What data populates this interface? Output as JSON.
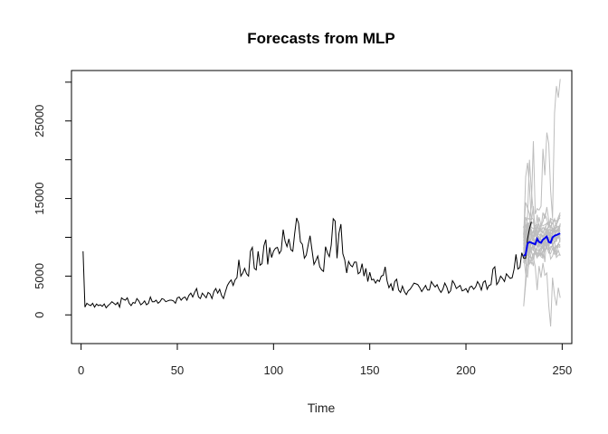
{
  "chart_data": {
    "type": "line",
    "title": "Forecasts from MLP",
    "xlabel": "Time",
    "ylabel": "",
    "xlim": [
      -5,
      255
    ],
    "ylim": [
      -3700,
      31500
    ],
    "xticks": [
      0,
      50,
      100,
      150,
      200,
      250
    ],
    "yticks": [
      0,
      5000,
      15000,
      25000
    ],
    "yticks_minor": [
      10000,
      20000,
      30000
    ],
    "grid": false,
    "legend": "none",
    "colors": {
      "history": "#000000",
      "mean_forecast": "#0000ee",
      "simulated_paths": "#bdbdbd"
    },
    "history": {
      "x_start": 1,
      "values": [
        8200,
        1000,
        1500,
        1300,
        1200,
        1500,
        1000,
        1400,
        1200,
        1300,
        1100,
        1400,
        900,
        1200,
        1400,
        1700,
        1500,
        1300,
        1600,
        1000,
        2200,
        2000,
        1900,
        2200,
        1500,
        1200,
        1600,
        1500,
        2100,
        1800,
        1300,
        1500,
        1800,
        1300,
        1500,
        2300,
        1700,
        1700,
        1900,
        1500,
        1700,
        2100,
        2000,
        1700,
        1800,
        1900,
        1900,
        1800,
        1500,
        2200,
        2300,
        1900,
        2200,
        2300,
        1900,
        2500,
        2800,
        2300,
        2900,
        3400,
        2300,
        2100,
        2800,
        2500,
        2200,
        2900,
        2700,
        2100,
        3000,
        3400,
        2800,
        3300,
        2500,
        2100,
        3000,
        3800,
        4200,
        4500,
        3800,
        4500,
        4800,
        7100,
        5000,
        5400,
        6000,
        5300,
        5000,
        8200,
        8700,
        6000,
        5800,
        8200,
        6400,
        6600,
        8900,
        9700,
        6500,
        8700,
        7400,
        8200,
        8600,
        8700,
        7900,
        8300,
        11000,
        9500,
        8800,
        9800,
        8400,
        8200,
        10500,
        12500,
        11800,
        9400,
        9100,
        7300,
        7700,
        9000,
        10200,
        8300,
        6500,
        7000,
        7600,
        6200,
        5800,
        5600,
        8800,
        8000,
        7500,
        9000,
        12400,
        12100,
        7300,
        10500,
        11700,
        7900,
        7100,
        5400,
        6900,
        6400,
        6200,
        6800,
        6800,
        5300,
        5500,
        6600,
        5000,
        6000,
        4300,
        5500,
        4500,
        4600,
        4100,
        4500,
        4300,
        5000,
        5100,
        6200,
        4400,
        3500,
        4000,
        3100,
        4300,
        4600,
        3200,
        2900,
        3700,
        3000,
        2600,
        3100,
        3300,
        3700,
        4100,
        4000,
        3900,
        3500,
        3000,
        3400,
        3800,
        3200,
        3200,
        4300,
        3900,
        3600,
        3900,
        3300,
        2900,
        3300,
        4100,
        3600,
        2800,
        3100,
        4400,
        4000,
        3400,
        3600,
        3800,
        3100,
        3200,
        3400,
        2900,
        3600,
        3700,
        3300,
        3600,
        4300,
        3900,
        3200,
        4200,
        4400,
        3300,
        3800,
        3900,
        5900,
        6200,
        3900,
        4300,
        5000,
        4700,
        4300,
        5300,
        5000,
        4700,
        4800,
        5900,
        7800,
        5900,
        6100,
        8000,
        7300,
        7300,
        9800,
        11100,
        12000
      ]
    },
    "forecast_mean": {
      "x_start": 230,
      "values": [
        7600,
        7800,
        9200,
        9400,
        9300,
        9200,
        9100,
        9800,
        9400,
        9300,
        9700,
        9900,
        10100,
        9400,
        9300,
        10000,
        10200,
        10300,
        10400,
        10500
      ]
    },
    "simulated_paths": [
      [
        9500,
        12600,
        11800,
        10800,
        11700,
        12000,
        10300,
        10400,
        10800,
        11200,
        10600,
        11300,
        10500,
        11800,
        11400,
        11800,
        12400,
        11200,
        11400,
        11500
      ],
      [
        7500,
        5300,
        4900,
        7600,
        7200,
        7900,
        8100,
        7500,
        7700,
        8000,
        7400,
        8400,
        8800,
        8000,
        7900,
        8600,
        7800,
        8000,
        9000,
        9800
      ],
      [
        9900,
        17800,
        19600,
        16500,
        12100,
        14000,
        10500,
        10900,
        12600,
        11500,
        12000,
        13000,
        12400,
        11200,
        12500,
        10500,
        11400,
        11800,
        12600,
        13200
      ],
      [
        6700,
        10300,
        12800,
        20000,
        16000,
        13200,
        10600,
        12900,
        10600,
        11200,
        13200,
        12400,
        13900,
        12200,
        10800,
        11200,
        10900,
        9400,
        10800,
        11700
      ],
      [
        10500,
        14500,
        13800,
        13000,
        10100,
        10900,
        7800,
        8500,
        10100,
        9200,
        9800,
        9700,
        11100,
        10500,
        9600,
        10800,
        11300,
        9700,
        10000,
        11800
      ],
      [
        8100,
        9900,
        10200,
        11900,
        12600,
        12300,
        10300,
        11200,
        8900,
        10400,
        9900,
        10700,
        10800,
        11000,
        10200,
        9600,
        9800,
        9600,
        10100,
        9400
      ],
      [
        8500,
        6600,
        6300,
        7700,
        10100,
        9800,
        8100,
        7300,
        8500,
        7700,
        8200,
        9100,
        8600,
        10000,
        10000,
        9400,
        8200,
        8700,
        8800,
        8700
      ],
      [
        1100,
        4800,
        10700,
        8500,
        7100,
        6300,
        9300,
        9900,
        9300,
        9500,
        9000,
        6800,
        10400,
        8500,
        10300,
        8900,
        9500,
        7700,
        8300,
        7600
      ],
      [
        7700,
        11100,
        9600,
        8500,
        10200,
        10200,
        11100,
        10500,
        8600,
        9800,
        9200,
        9500,
        10400,
        9300,
        10600,
        10300,
        11300,
        10600,
        11100,
        10700
      ],
      [
        8700,
        6900,
        10300,
        9700,
        8000,
        7700,
        8000,
        7400,
        8000,
        7500,
        7300,
        9100,
        9100,
        8900,
        7200,
        7600,
        8500,
        7400,
        7700,
        7800
      ],
      [
        11300,
        11200,
        12500,
        12300,
        13900,
        22400,
        13000,
        13700,
        13500,
        14000,
        21400,
        18000,
        23500,
        22100,
        16000,
        12500,
        26000,
        29500,
        28000,
        30400
      ],
      [
        9000,
        10400,
        11400,
        10400,
        11000,
        9500,
        10900,
        11400,
        11700,
        10700,
        11300,
        10900,
        11800,
        11500,
        12300,
        12400,
        10600,
        11600,
        12200,
        12900
      ],
      [
        11400,
        10200,
        11900,
        9800,
        8500,
        9100,
        9600,
        8700,
        9000,
        9400,
        9300,
        9800,
        9000,
        10000,
        9700,
        10400,
        10400,
        9800,
        10500,
        10400
      ],
      [
        9200,
        8700,
        8800,
        7100,
        6600,
        7500,
        7900,
        8000,
        7600,
        8400,
        9100,
        9000,
        9800,
        10000,
        10000,
        9700,
        9500,
        9600,
        10400,
        9800
      ],
      [
        8900,
        10100,
        10500,
        10800,
        10500,
        10100,
        10200,
        10300,
        10400,
        10300,
        10200,
        10300,
        10400,
        10600,
        10500,
        10600,
        10700,
        10800,
        10800,
        10900
      ],
      [
        10000,
        10900,
        11200,
        11700,
        11300,
        11100,
        11500,
        11600,
        11000,
        11700,
        11500,
        11600,
        11800,
        12000,
        11900,
        11800,
        12200,
        12100,
        12300,
        12500
      ],
      [
        7800,
        8400,
        8200,
        8000,
        8500,
        8300,
        8100,
        8400,
        8200,
        8700,
        8500,
        8300,
        8600,
        8400,
        8800,
        8900,
        8600,
        8900,
        9100,
        9000
      ],
      [
        8400,
        9300,
        9800,
        9500,
        9900,
        9600,
        9700,
        10200,
        9800,
        10000,
        10300,
        10100,
        10500,
        10200,
        10400,
        10600,
        10900,
        10800,
        11000,
        11100
      ],
      [
        7300,
        7800,
        8600,
        8100,
        8400,
        8900,
        8300,
        8700,
        9200,
        8800,
        9000,
        9400,
        9100,
        9600,
        9300,
        9700,
        10000,
        9800,
        10100,
        10200
      ],
      [
        9600,
        9000,
        9400,
        9800,
        9300,
        9900,
        10200,
        9700,
        10100,
        10500,
        10000,
        10400,
        10800,
        10200,
        10700,
        11000,
        10600,
        10900,
        11200,
        11400
      ],
      [
        8200,
        9000,
        8300,
        6500,
        7300,
        7400,
        6200,
        3200,
        6300,
        4800,
        6700,
        5100,
        5400,
        1200,
        -1500,
        4800,
        2500,
        1200,
        3500,
        2200
      ],
      [
        8600,
        9100,
        8400,
        8800,
        9200,
        8700,
        9000,
        9300,
        8900,
        9400,
        9100,
        9600,
        9200,
        9700,
        9500,
        9800,
        10000,
        9700,
        10100,
        10300
      ],
      [
        10500,
        10100,
        11000,
        10600,
        10300,
        10900,
        10700,
        10200,
        11100,
        10800,
        10500,
        11200,
        11000,
        10700,
        11300,
        11100,
        10900,
        11500,
        11300,
        11600
      ],
      [
        6900,
        7600,
        9000,
        7900,
        8300,
        7100,
        8600,
        7800,
        8200,
        8700,
        7500,
        8400,
        8900,
        8000,
        8500,
        9000,
        8100,
        8700,
        9200,
        8800
      ],
      [
        9300,
        8100,
        7700,
        8600,
        9500,
        8400,
        9000,
        9700,
        8800,
        9200,
        8600,
        9400,
        9900,
        9100,
        9500,
        9800,
        9300,
        9700,
        10100,
        10000
      ]
    ]
  }
}
